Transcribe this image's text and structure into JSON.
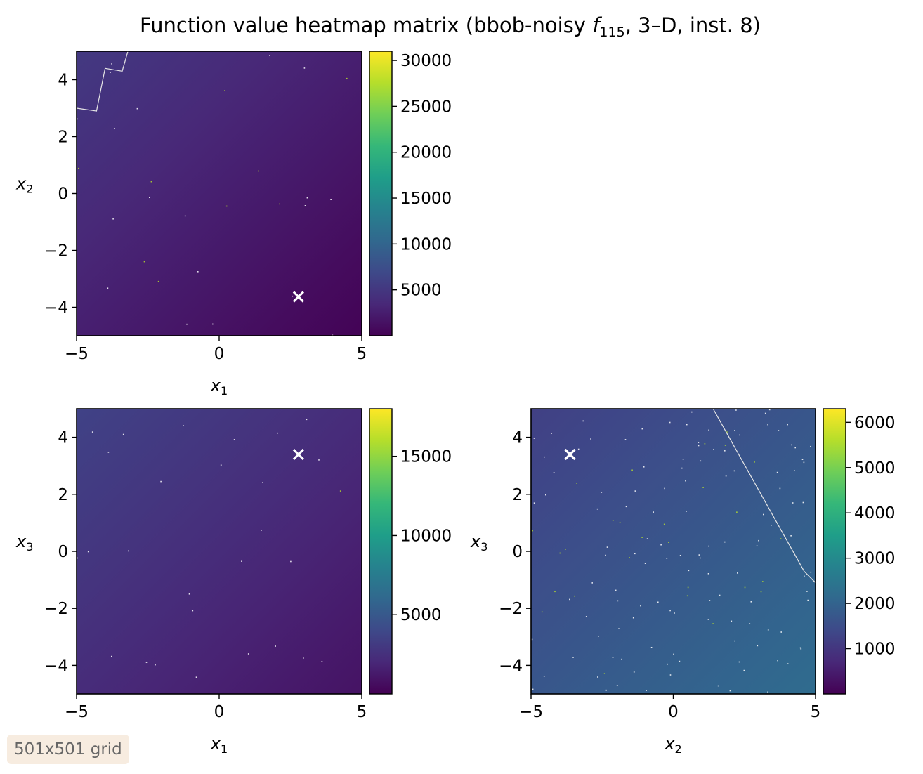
{
  "figure": {
    "title_main": "Function value heatmap matrix (bbob-noisy ",
    "title_func": "f",
    "title_func_sub": "115",
    "title_rest": ", 3–D, inst. 8)",
    "grid_badge": "501x501 grid"
  },
  "colormap": {
    "name": "viridis",
    "stops": [
      "#440154",
      "#482878",
      "#3e4989",
      "#31688e",
      "#26828e",
      "#1f9e89",
      "#35b779",
      "#6ece58",
      "#b5de2b",
      "#fde725"
    ]
  },
  "chart_data": [
    {
      "type": "heatmap",
      "panel": "x1-x2",
      "xlabel": "x",
      "xlabel_sub": "1",
      "ylabel": "x",
      "ylabel_sub": "2",
      "xlim": [
        -5,
        5
      ],
      "ylim": [
        -5,
        5
      ],
      "xticks": [
        -5,
        0,
        5
      ],
      "yticks": [
        -4,
        -2,
        0,
        2,
        4
      ],
      "xtick_labels": [
        "−5",
        "0",
        "5"
      ],
      "ytick_labels": [
        "−4",
        "−2",
        "0",
        "2",
        "4"
      ],
      "colorbar": {
        "range": [
          0,
          31000
        ],
        "ticks": [
          5000,
          10000,
          15000,
          20000,
          25000,
          30000
        ],
        "tick_labels": [
          "5000",
          "10000",
          "15000",
          "20000",
          "25000",
          "30000"
        ]
      },
      "field": {
        "min_value": 150,
        "max_value": 5200,
        "low_corner": [
          5,
          -5
        ],
        "high_corner": [
          -5,
          5
        ]
      },
      "contour": [
        [
          -3.2,
          5
        ],
        [
          -3.4,
          4.3
        ],
        [
          -4,
          4.4
        ],
        [
          -4.3,
          2.9
        ],
        [
          -5,
          3.0
        ]
      ],
      "optimum": [
        2.78,
        -3.63
      ],
      "grid": false
    },
    {
      "type": "heatmap",
      "panel": "x1-x3",
      "xlabel": "x",
      "xlabel_sub": "1",
      "ylabel": "x",
      "ylabel_sub": "3",
      "xlim": [
        -5,
        5
      ],
      "ylim": [
        -5,
        5
      ],
      "xticks": [
        -5,
        0,
        5
      ],
      "yticks": [
        -4,
        -2,
        0,
        2,
        4
      ],
      "xtick_labels": [
        "−5",
        "0",
        "5"
      ],
      "ytick_labels": [
        "−4",
        "−2",
        "0",
        "2",
        "4"
      ],
      "colorbar": {
        "range": [
          0,
          18000
        ],
        "ticks": [
          5000,
          10000,
          15000
        ],
        "tick_labels": [
          "5000",
          "10000",
          "15000"
        ]
      },
      "field": {
        "min_value": 900,
        "max_value": 3600,
        "low_corner": [
          5,
          -5
        ],
        "high_corner": [
          -5,
          5
        ]
      },
      "contour": [],
      "optimum": [
        2.78,
        3.4
      ],
      "grid": false
    },
    {
      "type": "heatmap",
      "panel": "x2-x3",
      "xlabel": "x",
      "xlabel_sub": "2",
      "ylabel": "x",
      "ylabel_sub": "3",
      "xlim": [
        -5,
        5
      ],
      "ylim": [
        -5,
        5
      ],
      "xticks": [
        -5,
        0,
        5
      ],
      "yticks": [
        -4,
        -2,
        0,
        2,
        4
      ],
      "xtick_labels": [
        "−5",
        "0",
        "5"
      ],
      "ytick_labels": [
        "−4",
        "−2",
        "0",
        "2",
        "4"
      ],
      "colorbar": {
        "range": [
          0,
          6300
        ],
        "ticks": [
          1000,
          2000,
          3000,
          4000,
          5000,
          6000
        ],
        "tick_labels": [
          "1000",
          "2000",
          "3000",
          "4000",
          "5000",
          "6000"
        ]
      },
      "field": {
        "min_value": 1200,
        "max_value": 2200,
        "low_corner": [
          -5,
          5
        ],
        "high_corner": [
          5,
          -5
        ]
      },
      "contour": [
        [
          1.4,
          5
        ],
        [
          4.6,
          -0.7
        ],
        [
          5,
          -1.1
        ]
      ],
      "optimum": [
        -3.63,
        3.4
      ],
      "grid": false
    }
  ]
}
